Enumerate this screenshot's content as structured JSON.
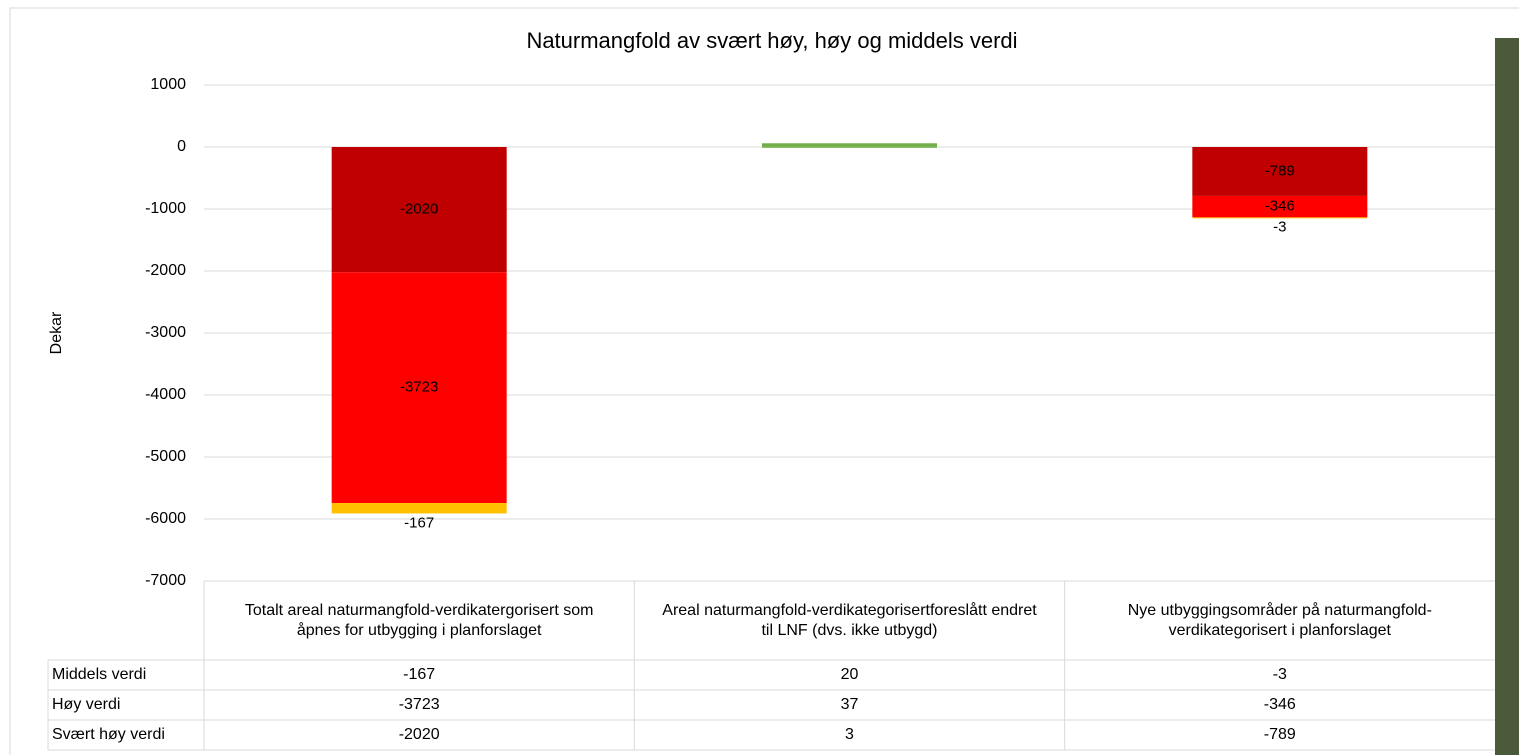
{
  "chart_data": {
    "type": "stacked_bar",
    "title": "Naturmangfold av svært høy, høy og middels verdi",
    "y_label": "Dekar",
    "categories": [
      "Totalt areal naturmangfold-verdikatergorisert som åpnes for utbygging i planforslaget",
      "Areal naturmangfold-verdikategorisertforeslått endret til LNF (dvs. ikke utbygd)",
      "Nye utbyggingsområder på naturmangfold-verdikategorisert i planforslaget"
    ],
    "series": [
      {
        "name": "Middels verdi",
        "color": "#ffc000",
        "values": [
          -167,
          20,
          -3
        ]
      },
      {
        "name": "Høy verdi",
        "color": "#ff0000",
        "values": [
          -3723,
          37,
          -346
        ]
      },
      {
        "name": "Svært høy verdi",
        "color": "#c00000",
        "values": [
          -2020,
          3,
          -789
        ]
      }
    ],
    "positive_color": "#70ad47",
    "ylim": [
      -7000,
      1000
    ],
    "yticks": [
      -7000,
      -6000,
      -5000,
      -4000,
      -3000,
      -2000,
      -1000,
      0,
      1000
    ],
    "grid": true
  }
}
